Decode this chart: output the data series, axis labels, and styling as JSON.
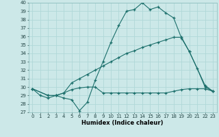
{
  "bg_color": "#cce8e8",
  "line_color": "#1a6e6a",
  "grid_color": "#b0d8d8",
  "xlabel": "Humidex (Indice chaleur)",
  "xlim": [
    -0.5,
    23.5
  ],
  "ylim": [
    27,
    40
  ],
  "yticks": [
    27,
    28,
    29,
    30,
    31,
    32,
    33,
    34,
    35,
    36,
    37,
    38,
    39,
    40
  ],
  "xticks": [
    0,
    1,
    2,
    3,
    4,
    5,
    6,
    7,
    8,
    9,
    10,
    11,
    12,
    13,
    14,
    15,
    16,
    17,
    18,
    19,
    20,
    21,
    22,
    23
  ],
  "line1_x": [
    0,
    1,
    2,
    3,
    4,
    5,
    6,
    7,
    8,
    9,
    10,
    11,
    12,
    13,
    14,
    15,
    16,
    17,
    18,
    19,
    20,
    21,
    22,
    23
  ],
  "line1_y": [
    29.8,
    29.0,
    28.7,
    29.0,
    28.7,
    28.5,
    27.2,
    28.2,
    30.8,
    33.0,
    35.3,
    37.3,
    39.0,
    39.2,
    40.0,
    39.2,
    39.5,
    38.8,
    38.2,
    35.8,
    34.2,
    32.2,
    30.0,
    29.5
  ],
  "line2_x": [
    0,
    2,
    3,
    4,
    5,
    6,
    7,
    8,
    9,
    10,
    11,
    12,
    13,
    14,
    15,
    16,
    17,
    18,
    19,
    20,
    22,
    23
  ],
  "line2_y": [
    29.8,
    29.0,
    29.0,
    29.3,
    30.5,
    31.0,
    31.5,
    32.0,
    32.5,
    33.0,
    33.5,
    34.0,
    34.3,
    34.7,
    35.0,
    35.3,
    35.6,
    35.9,
    35.9,
    34.2,
    30.2,
    29.5
  ],
  "line3_x": [
    0,
    2,
    3,
    4,
    5,
    6,
    7,
    8,
    9,
    10,
    11,
    12,
    13,
    14,
    15,
    16,
    17,
    18,
    19,
    20,
    21,
    22,
    23
  ],
  "line3_y": [
    29.8,
    29.0,
    29.0,
    29.3,
    29.7,
    29.9,
    30.0,
    30.0,
    29.3,
    29.3,
    29.3,
    29.3,
    29.3,
    29.3,
    29.3,
    29.3,
    29.3,
    29.5,
    29.7,
    29.8,
    29.8,
    29.8,
    29.5
  ]
}
